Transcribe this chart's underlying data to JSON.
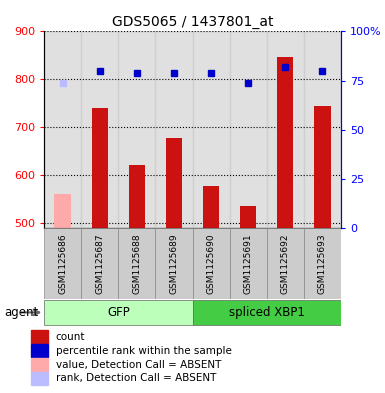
{
  "title": "GDS5065 / 1437801_at",
  "samples": [
    "GSM1125686",
    "GSM1125687",
    "GSM1125688",
    "GSM1125689",
    "GSM1125690",
    "GSM1125691",
    "GSM1125692",
    "GSM1125693"
  ],
  "counts": [
    560,
    740,
    622,
    678,
    578,
    535,
    847,
    745
  ],
  "percentile_ranks": [
    74,
    80,
    79,
    79,
    79,
    74,
    82,
    80
  ],
  "absent": [
    true,
    false,
    false,
    false,
    false,
    false,
    false,
    false
  ],
  "ylim_left": [
    490,
    900
  ],
  "ylim_right": [
    0,
    100
  ],
  "yticks_left": [
    500,
    600,
    700,
    800,
    900
  ],
  "yticks_right": [
    0,
    25,
    50,
    75,
    100
  ],
  "groups": [
    {
      "label": "GFP",
      "start": 0,
      "end": 4,
      "color": "#bbffbb"
    },
    {
      "label": "spliced XBP1",
      "start": 4,
      "end": 8,
      "color": "#44cc44"
    }
  ],
  "bar_color_present": "#cc1111",
  "bar_color_absent": "#ffaaaa",
  "dot_color_present": "#0000cc",
  "dot_color_absent": "#bbbbff",
  "bar_width": 0.45,
  "legend_items": [
    {
      "label": "count",
      "color": "#cc1111"
    },
    {
      "label": "percentile rank within the sample",
      "color": "#0000cc"
    },
    {
      "label": "value, Detection Call = ABSENT",
      "color": "#ffaaaa"
    },
    {
      "label": "rank, Detection Call = ABSENT",
      "color": "#bbbbff"
    }
  ]
}
